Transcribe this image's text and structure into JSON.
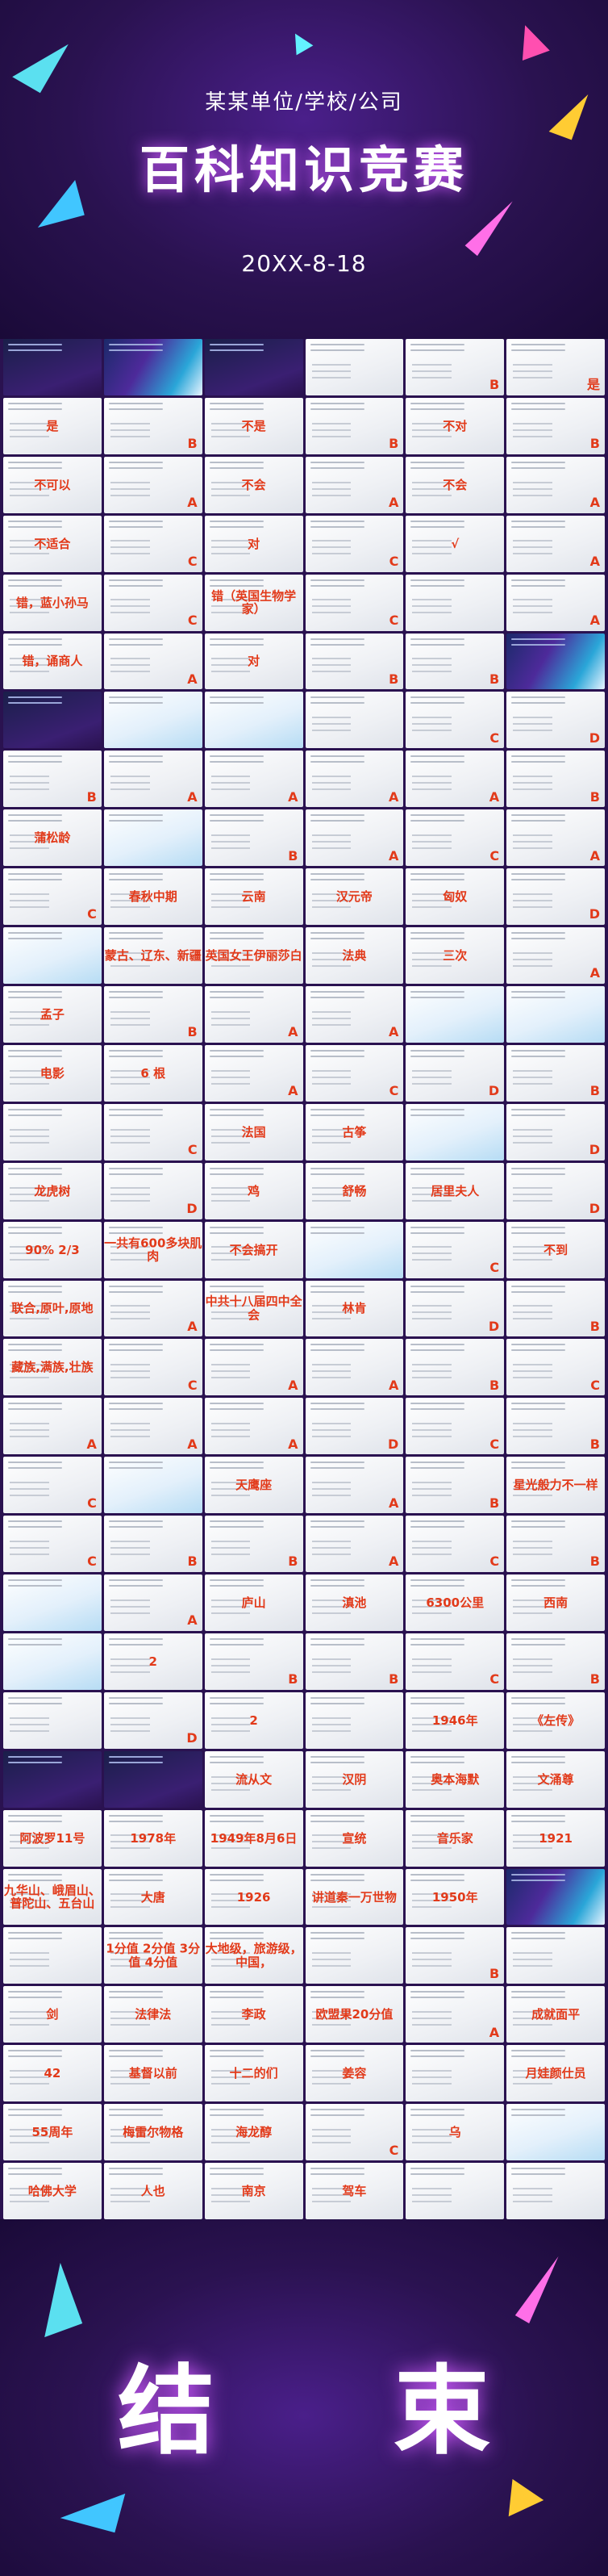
{
  "header": {
    "subtitle": "某某单位/学校/公司",
    "title": "百科知识竞赛",
    "date": "20XX-8-18"
  },
  "slides": [
    {
      "kind": "dark",
      "answer": "",
      "style": "none"
    },
    {
      "kind": "colorful",
      "answer": "",
      "style": "none"
    },
    {
      "kind": "dark",
      "answer": "",
      "style": "none"
    },
    {
      "kind": "light",
      "answer": "",
      "style": "none"
    },
    {
      "kind": "light",
      "answer": "B",
      "style": "letter"
    },
    {
      "kind": "light",
      "answer": "是",
      "style": "letter"
    },
    {
      "kind": "light",
      "answer": "是",
      "style": "center"
    },
    {
      "kind": "light",
      "answer": "B",
      "style": "letter"
    },
    {
      "kind": "light",
      "answer": "不是",
      "style": "center"
    },
    {
      "kind": "light",
      "answer": "B",
      "style": "letter"
    },
    {
      "kind": "light",
      "answer": "不对",
      "style": "center"
    },
    {
      "kind": "light",
      "answer": "B",
      "style": "letter"
    },
    {
      "kind": "light",
      "answer": "不可以",
      "style": "center"
    },
    {
      "kind": "light",
      "answer": "A",
      "style": "letter"
    },
    {
      "kind": "light",
      "answer": "不会",
      "style": "center"
    },
    {
      "kind": "light",
      "answer": "A",
      "style": "letter"
    },
    {
      "kind": "light",
      "answer": "不会",
      "style": "center"
    },
    {
      "kind": "light",
      "answer": "A",
      "style": "letter"
    },
    {
      "kind": "light",
      "answer": "不适合",
      "style": "center"
    },
    {
      "kind": "light",
      "answer": "C",
      "style": "letter"
    },
    {
      "kind": "light",
      "answer": "对",
      "style": "center"
    },
    {
      "kind": "light",
      "answer": "C",
      "style": "letter"
    },
    {
      "kind": "light",
      "answer": "√",
      "style": "center"
    },
    {
      "kind": "light",
      "answer": "A",
      "style": "letter"
    },
    {
      "kind": "light",
      "answer": "错，蓝小孙马",
      "style": "center"
    },
    {
      "kind": "light",
      "answer": "C",
      "style": "letter"
    },
    {
      "kind": "light",
      "answer": "错（英国生物学家）",
      "style": "center"
    },
    {
      "kind": "light",
      "answer": "C",
      "style": "letter"
    },
    {
      "kind": "light",
      "answer": "",
      "style": "none"
    },
    {
      "kind": "light",
      "answer": "A",
      "style": "letter"
    },
    {
      "kind": "light",
      "answer": "错，诵商人",
      "style": "center"
    },
    {
      "kind": "light",
      "answer": "A",
      "style": "letter"
    },
    {
      "kind": "light",
      "answer": "对",
      "style": "center"
    },
    {
      "kind": "light",
      "answer": "B",
      "style": "letter"
    },
    {
      "kind": "light",
      "answer": "B",
      "style": "letter"
    },
    {
      "kind": "colorful",
      "answer": "",
      "style": "none"
    },
    {
      "kind": "dark",
      "answer": "",
      "style": "none"
    },
    {
      "kind": "blue",
      "answer": "",
      "style": "none"
    },
    {
      "kind": "blue",
      "answer": "",
      "style": "none"
    },
    {
      "kind": "light",
      "answer": "",
      "style": "none"
    },
    {
      "kind": "light",
      "answer": "C",
      "style": "letter"
    },
    {
      "kind": "light",
      "answer": "D",
      "style": "letter"
    },
    {
      "kind": "light",
      "answer": "B",
      "style": "letter"
    },
    {
      "kind": "light",
      "answer": "A",
      "style": "letter"
    },
    {
      "kind": "light",
      "answer": "A",
      "style": "letter"
    },
    {
      "kind": "light",
      "answer": "A",
      "style": "letter"
    },
    {
      "kind": "light",
      "answer": "A",
      "style": "letter"
    },
    {
      "kind": "light",
      "answer": "B",
      "style": "letter"
    },
    {
      "kind": "light",
      "answer": "蒲松龄",
      "style": "center"
    },
    {
      "kind": "blue",
      "answer": "",
      "style": "none"
    },
    {
      "kind": "light",
      "answer": "B",
      "style": "letter"
    },
    {
      "kind": "light",
      "answer": "A",
      "style": "letter"
    },
    {
      "kind": "light",
      "answer": "C",
      "style": "letter"
    },
    {
      "kind": "light",
      "answer": "A",
      "style": "letter"
    },
    {
      "kind": "light",
      "answer": "C",
      "style": "letter"
    },
    {
      "kind": "light",
      "answer": "春秋中期",
      "style": "center"
    },
    {
      "kind": "light",
      "answer": "云南",
      "style": "center"
    },
    {
      "kind": "light",
      "answer": "汉元帝",
      "style": "center"
    },
    {
      "kind": "light",
      "answer": "匈奴",
      "style": "center"
    },
    {
      "kind": "light",
      "answer": "D",
      "style": "letter"
    },
    {
      "kind": "blue",
      "answer": "",
      "style": "none"
    },
    {
      "kind": "light",
      "answer": "蒙古、辽东、新疆",
      "style": "center"
    },
    {
      "kind": "light",
      "answer": "英国女王伊丽莎白",
      "style": "center"
    },
    {
      "kind": "light",
      "answer": "法典",
      "style": "center"
    },
    {
      "kind": "light",
      "answer": "三次",
      "style": "center"
    },
    {
      "kind": "light",
      "answer": "A",
      "style": "letter"
    },
    {
      "kind": "light",
      "answer": "孟子",
      "style": "center"
    },
    {
      "kind": "light",
      "answer": "B",
      "style": "letter"
    },
    {
      "kind": "light",
      "answer": "A",
      "style": "letter"
    },
    {
      "kind": "light",
      "answer": "A",
      "style": "letter"
    },
    {
      "kind": "blue",
      "answer": "",
      "style": "none"
    },
    {
      "kind": "blue",
      "answer": "",
      "style": "none"
    },
    {
      "kind": "light",
      "answer": "电影",
      "style": "center"
    },
    {
      "kind": "light",
      "answer": "6 根",
      "style": "center"
    },
    {
      "kind": "light",
      "answer": "A",
      "style": "letter"
    },
    {
      "kind": "light",
      "answer": "C",
      "style": "letter"
    },
    {
      "kind": "light",
      "answer": "D",
      "style": "letter"
    },
    {
      "kind": "light",
      "answer": "B",
      "style": "letter"
    },
    {
      "kind": "light",
      "answer": "",
      "style": "none"
    },
    {
      "kind": "light",
      "answer": "C",
      "style": "letter"
    },
    {
      "kind": "light",
      "answer": "法国",
      "style": "center"
    },
    {
      "kind": "light",
      "answer": "古筝",
      "style": "center"
    },
    {
      "kind": "blue",
      "answer": "",
      "style": "none"
    },
    {
      "kind": "light",
      "answer": "D",
      "style": "letter"
    },
    {
      "kind": "light",
      "answer": "龙虎树",
      "style": "center"
    },
    {
      "kind": "light",
      "answer": "D",
      "style": "letter"
    },
    {
      "kind": "light",
      "answer": "鸡",
      "style": "center"
    },
    {
      "kind": "light",
      "answer": "舒畅",
      "style": "center"
    },
    {
      "kind": "light",
      "answer": "居里夫人",
      "style": "center"
    },
    {
      "kind": "light",
      "answer": "D",
      "style": "letter"
    },
    {
      "kind": "light",
      "answer": "90%  2/3",
      "style": "center"
    },
    {
      "kind": "light",
      "answer": "一共有600多块肌肉",
      "style": "center"
    },
    {
      "kind": "light",
      "answer": "不会搞开",
      "style": "center"
    },
    {
      "kind": "blue",
      "answer": "",
      "style": "none"
    },
    {
      "kind": "light",
      "answer": "C",
      "style": "letter"
    },
    {
      "kind": "light",
      "answer": "不到",
      "style": "center"
    },
    {
      "kind": "light",
      "answer": "联合,原叶,原地",
      "style": "center"
    },
    {
      "kind": "light",
      "answer": "A",
      "style": "letter"
    },
    {
      "kind": "light",
      "answer": "中共十八届四中全会",
      "style": "center"
    },
    {
      "kind": "light",
      "answer": "林肯",
      "style": "center"
    },
    {
      "kind": "light",
      "answer": "D",
      "style": "letter"
    },
    {
      "kind": "light",
      "answer": "B",
      "style": "letter"
    },
    {
      "kind": "light",
      "answer": "藏族,满族,壮族",
      "style": "center"
    },
    {
      "kind": "light",
      "answer": "C",
      "style": "letter"
    },
    {
      "kind": "light",
      "answer": "A",
      "style": "letter"
    },
    {
      "kind": "light",
      "answer": "A",
      "style": "letter"
    },
    {
      "kind": "light",
      "answer": "B",
      "style": "letter"
    },
    {
      "kind": "light",
      "answer": "C",
      "style": "letter"
    },
    {
      "kind": "light",
      "answer": "A",
      "style": "letter"
    },
    {
      "kind": "light",
      "answer": "A",
      "style": "letter"
    },
    {
      "kind": "light",
      "answer": "A",
      "style": "letter"
    },
    {
      "kind": "light",
      "answer": "D",
      "style": "letter"
    },
    {
      "kind": "light",
      "answer": "C",
      "style": "letter"
    },
    {
      "kind": "light",
      "answer": "B",
      "style": "letter"
    },
    {
      "kind": "light",
      "answer": "C",
      "style": "letter"
    },
    {
      "kind": "blue",
      "answer": "",
      "style": "none"
    },
    {
      "kind": "light",
      "answer": "天鹰座",
      "style": "center"
    },
    {
      "kind": "light",
      "answer": "A",
      "style": "letter"
    },
    {
      "kind": "light",
      "answer": "B",
      "style": "letter"
    },
    {
      "kind": "light",
      "answer": "星光般力不一样",
      "style": "center"
    },
    {
      "kind": "light",
      "answer": "C",
      "style": "letter"
    },
    {
      "kind": "light",
      "answer": "B",
      "style": "letter"
    },
    {
      "kind": "light",
      "answer": "B",
      "style": "letter"
    },
    {
      "kind": "light",
      "answer": "A",
      "style": "letter"
    },
    {
      "kind": "light",
      "answer": "C",
      "style": "letter"
    },
    {
      "kind": "light",
      "answer": "B",
      "style": "letter"
    },
    {
      "kind": "blue",
      "answer": "",
      "style": "none"
    },
    {
      "kind": "light",
      "answer": "A",
      "style": "letter"
    },
    {
      "kind": "light",
      "answer": "庐山",
      "style": "center"
    },
    {
      "kind": "light",
      "answer": "滇池",
      "style": "center"
    },
    {
      "kind": "light",
      "answer": "6300公里",
      "style": "center"
    },
    {
      "kind": "light",
      "answer": "西南",
      "style": "center"
    },
    {
      "kind": "blue",
      "answer": "",
      "style": "none"
    },
    {
      "kind": "light",
      "answer": "2",
      "style": "center"
    },
    {
      "kind": "light",
      "answer": "B",
      "style": "letter"
    },
    {
      "kind": "light",
      "answer": "B",
      "style": "letter"
    },
    {
      "kind": "light",
      "answer": "C",
      "style": "letter"
    },
    {
      "kind": "light",
      "answer": "B",
      "style": "letter"
    },
    {
      "kind": "light",
      "answer": "",
      "style": "none"
    },
    {
      "kind": "light",
      "answer": "D",
      "style": "letter"
    },
    {
      "kind": "light",
      "answer": "2",
      "style": "center"
    },
    {
      "kind": "light",
      "answer": "",
      "style": "none"
    },
    {
      "kind": "light",
      "answer": "1946年",
      "style": "center"
    },
    {
      "kind": "light",
      "answer": "《左传》",
      "style": "center"
    },
    {
      "kind": "dark",
      "answer": "",
      "style": "none"
    },
    {
      "kind": "dark",
      "answer": "",
      "style": "none"
    },
    {
      "kind": "light",
      "answer": "流从文",
      "style": "center"
    },
    {
      "kind": "light",
      "answer": "汉阴",
      "style": "center"
    },
    {
      "kind": "light",
      "answer": "奥本海默",
      "style": "center"
    },
    {
      "kind": "light",
      "answer": "文涌尊",
      "style": "center"
    },
    {
      "kind": "light",
      "answer": "阿波罗11号",
      "style": "center"
    },
    {
      "kind": "light",
      "answer": "1978年",
      "style": "center"
    },
    {
      "kind": "light",
      "answer": "1949年8月6日",
      "style": "center"
    },
    {
      "kind": "light",
      "answer": "宣统",
      "style": "center"
    },
    {
      "kind": "light",
      "answer": "音乐家",
      "style": "center"
    },
    {
      "kind": "light",
      "answer": "1921",
      "style": "center"
    },
    {
      "kind": "light",
      "answer": "九华山、峨眉山、普陀山、五台山",
      "style": "center"
    },
    {
      "kind": "light",
      "answer": "大唐",
      "style": "center"
    },
    {
      "kind": "light",
      "answer": "1926",
      "style": "center"
    },
    {
      "kind": "light",
      "answer": "讲道秦一万世物",
      "style": "center"
    },
    {
      "kind": "light",
      "answer": "1950年",
      "style": "center"
    },
    {
      "kind": "colorful",
      "answer": "",
      "style": "none"
    },
    {
      "kind": "light",
      "answer": "",
      "style": "none"
    },
    {
      "kind": "light",
      "answer": "1分值  2分值  3分值  4分值",
      "style": "center"
    },
    {
      "kind": "light",
      "answer": "大地级，旅游级，中国，",
      "style": "center"
    },
    {
      "kind": "light",
      "answer": "",
      "style": "none"
    },
    {
      "kind": "light",
      "answer": "B",
      "style": "letter"
    },
    {
      "kind": "light",
      "answer": "",
      "style": "none"
    },
    {
      "kind": "light",
      "answer": "剑",
      "style": "center"
    },
    {
      "kind": "light",
      "answer": "法律法",
      "style": "center"
    },
    {
      "kind": "light",
      "answer": "李政",
      "style": "center"
    },
    {
      "kind": "light",
      "answer": "欧盟果20分值",
      "style": "center"
    },
    {
      "kind": "light",
      "answer": "A",
      "style": "letter"
    },
    {
      "kind": "light",
      "answer": "成就面平",
      "style": "center"
    },
    {
      "kind": "light",
      "answer": "42",
      "style": "center"
    },
    {
      "kind": "light",
      "answer": "基督以前",
      "style": "center"
    },
    {
      "kind": "light",
      "answer": "十二的们",
      "style": "center"
    },
    {
      "kind": "light",
      "answer": "姜容",
      "style": "center"
    },
    {
      "kind": "light",
      "answer": "",
      "style": "none"
    },
    {
      "kind": "light",
      "answer": "月娃颜仕员",
      "style": "center"
    },
    {
      "kind": "light",
      "answer": "55周年",
      "style": "center"
    },
    {
      "kind": "light",
      "answer": "梅雷尔物格",
      "style": "center"
    },
    {
      "kind": "light",
      "answer": "海龙醇",
      "style": "center"
    },
    {
      "kind": "light",
      "answer": "C",
      "style": "letter"
    },
    {
      "kind": "light",
      "answer": "乌",
      "style": "center"
    },
    {
      "kind": "blue",
      "answer": "",
      "style": "none"
    },
    {
      "kind": "light",
      "answer": "哈佛大学",
      "style": "center"
    },
    {
      "kind": "light",
      "answer": "人也",
      "style": "center"
    },
    {
      "kind": "light",
      "answer": "南京",
      "style": "center"
    },
    {
      "kind": "light",
      "answer": "驾车",
      "style": "center"
    },
    {
      "kind": "light",
      "answer": "",
      "style": "none"
    },
    {
      "kind": "light",
      "answer": "",
      "style": "none"
    }
  ],
  "footer": {
    "title": "结 束"
  },
  "colors": {
    "accent": "#e23a1a",
    "bg": "#2a1250",
    "glow": "#d15cff"
  }
}
